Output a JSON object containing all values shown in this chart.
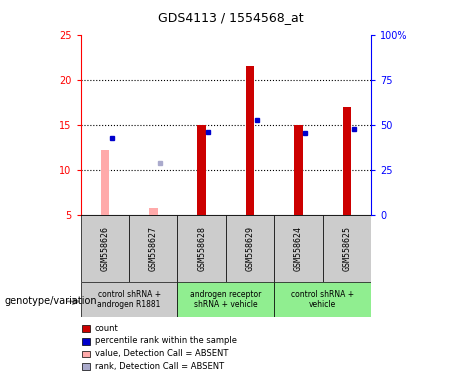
{
  "title": "GDS4113 / 1554568_at",
  "samples": [
    "GSM558626",
    "GSM558627",
    "GSM558628",
    "GSM558629",
    "GSM558624",
    "GSM558625"
  ],
  "groups": [
    {
      "label": "control shRNA +\nandrogen R1881",
      "color": "#cccccc",
      "samples": [
        0,
        1
      ]
    },
    {
      "label": "androgen receptor\nshRNA + vehicle",
      "color": "#90ee90",
      "samples": [
        2,
        3
      ]
    },
    {
      "label": "control shRNA +\nvehicle",
      "color": "#90ee90",
      "samples": [
        4,
        5
      ]
    }
  ],
  "count_values": [
    null,
    null,
    15.0,
    21.5,
    15.0,
    17.0
  ],
  "count_absent": [
    12.2,
    5.8,
    null,
    null,
    null,
    null
  ],
  "rank_values": [
    13.5,
    null,
    14.2,
    15.5,
    14.1,
    14.5
  ],
  "rank_absent": [
    null,
    10.8,
    null,
    null,
    null,
    null
  ],
  "ylim_left": [
    5,
    25
  ],
  "ylim_right": [
    0,
    100
  ],
  "yticks_left": [
    5,
    10,
    15,
    20,
    25
  ],
  "yticks_right": [
    0,
    25,
    50,
    75,
    100
  ],
  "ytick_labels_right": [
    "0",
    "25",
    "50",
    "75",
    "100%"
  ],
  "bar_width": 0.18,
  "count_color": "#cc0000",
  "count_absent_color": "#ffaaaa",
  "rank_color": "#0000cc",
  "rank_absent_color": "#aaaacc",
  "bg_color": "#ffffff",
  "plot_bg": "#ffffff",
  "legend_items": [
    {
      "color": "#cc0000",
      "label": "count"
    },
    {
      "color": "#0000cc",
      "label": "percentile rank within the sample"
    },
    {
      "color": "#ffaaaa",
      "label": "value, Detection Call = ABSENT"
    },
    {
      "color": "#aaaacc",
      "label": "rank, Detection Call = ABSENT"
    }
  ],
  "genotype_label": "genotype/variation",
  "sample_box_color": "#cccccc",
  "group1_color": "#cccccc",
  "group2_color": "#90ee90",
  "group3_color": "#90ee90"
}
